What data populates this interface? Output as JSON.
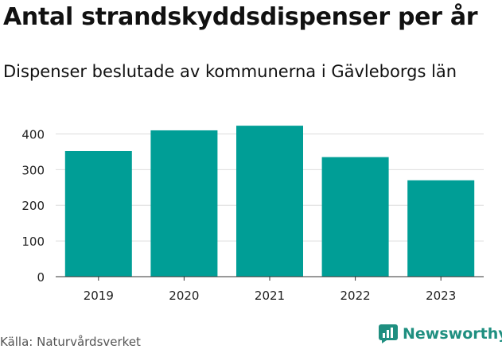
{
  "chart_data": {
    "type": "bar",
    "title": "Antal strandskyddsdispenser per år",
    "subtitle": "Dispenser beslutade av kommunerna i Gävleborgs län",
    "categories": [
      "2019",
      "2020",
      "2021",
      "2022",
      "2023"
    ],
    "values": [
      352,
      410,
      423,
      335,
      270
    ],
    "ylim": [
      0,
      450
    ],
    "yticks": [
      0,
      100,
      200,
      300,
      400
    ],
    "xlabel": "",
    "ylabel": "",
    "grid": true,
    "bar_color": "#009e96"
  },
  "footer": {
    "source": "Källa: Naturvårdsverket",
    "brand": "Newsworthy",
    "brand_color": "#1f8f80"
  }
}
